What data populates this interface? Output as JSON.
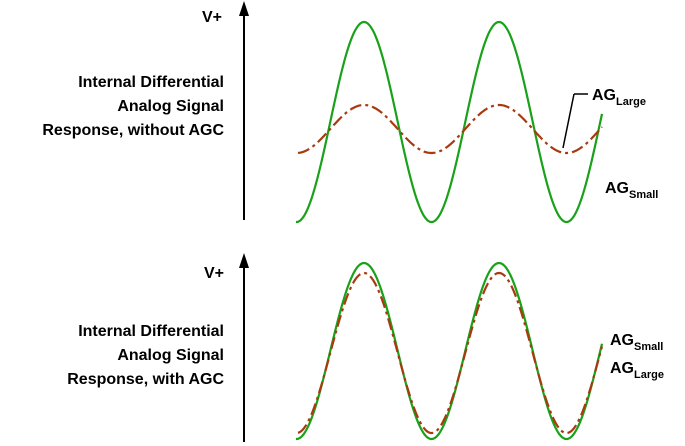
{
  "colors": {
    "small_wave": "#1aa11a",
    "large_wave": "#a83a10",
    "axis": "#000000"
  },
  "top_panel": {
    "axis_label": "V+",
    "description_lines": [
      "Internal Differential",
      "Analog Signal",
      "Response, without AGC"
    ],
    "label_large": {
      "base": "AG",
      "sub": "Large"
    },
    "label_small": {
      "base": "AG",
      "sub": "Small"
    }
  },
  "bottom_panel": {
    "axis_label": "V+",
    "description_lines": [
      "Internal Differential",
      "Analog Signal",
      "Response, with AGC"
    ],
    "label_small": {
      "base": "AG",
      "sub": "Small"
    },
    "label_large": {
      "base": "AG",
      "sub": "Large"
    }
  }
}
